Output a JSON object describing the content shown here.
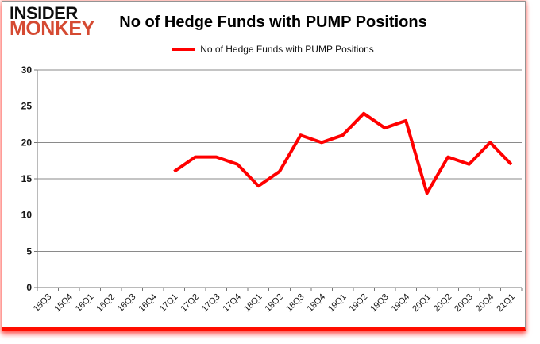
{
  "brand": {
    "line1": "INSIDER",
    "line2": "MONKEY"
  },
  "header": {
    "title": "No of Hedge Funds with PUMP Positions"
  },
  "legend": {
    "label": "No of Hedge Funds with PUMP Positions"
  },
  "colors": {
    "series_line": "#ff0000",
    "brand_red": "#d54a32",
    "gridline": "#8a8a8a",
    "axis": "#757575",
    "bottom_bar": "#ff0d00",
    "tick_text": "#161616"
  },
  "chart_data": {
    "type": "line",
    "title": "No of Hedge Funds with PUMP Positions",
    "xlabel": "",
    "ylabel": "",
    "categories": [
      "15Q3",
      "15Q4",
      "16Q1",
      "16Q2",
      "16Q3",
      "16Q4",
      "17Q1",
      "17Q2",
      "17Q3",
      "17Q4",
      "18Q1",
      "18Q2",
      "18Q3",
      "18Q4",
      "19Q1",
      "19Q2",
      "19Q3",
      "19Q4",
      "20Q1",
      "20Q2",
      "20Q3",
      "20Q4",
      "21Q1"
    ],
    "series": [
      {
        "name": "No of Hedge Funds with PUMP Positions",
        "color": "#ff0000",
        "values": [
          null,
          null,
          null,
          null,
          null,
          null,
          16,
          18,
          18,
          17,
          14,
          16,
          21,
          20,
          21,
          24,
          22,
          23,
          13,
          18,
          17,
          20,
          17
        ]
      }
    ],
    "ylim": [
      0,
      30
    ],
    "ytick_step": 5,
    "yticks": [
      0,
      5,
      10,
      15,
      20,
      25,
      30
    ],
    "grid": true,
    "legend_position": "top-center",
    "x_tick_rotation": -45
  }
}
